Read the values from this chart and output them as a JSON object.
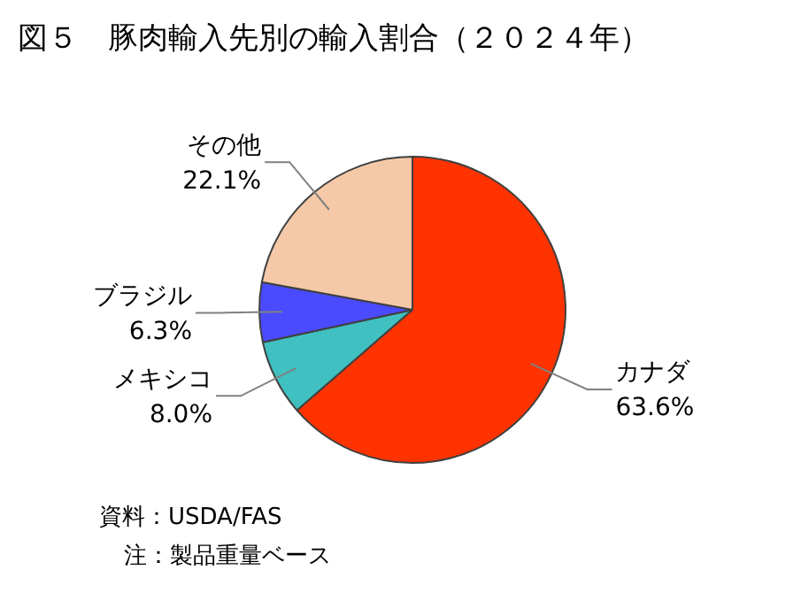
{
  "chart_data": {
    "type": "pie",
    "title": "図５　豚肉輸入先別の輸入割合（２０２４年）",
    "categories": [
      "カナダ",
      "メキシコ",
      "ブラジル",
      "その他"
    ],
    "values": [
      63.6,
      8.0,
      6.3,
      22.1
    ],
    "value_labels": [
      "63.6%",
      "8.0%",
      "6.3%",
      "22.1%"
    ],
    "colors": [
      "#ff3300",
      "#40c0c0",
      "#4a4aff",
      "#f5c9a8"
    ],
    "annotations": [
      "資料：USDA/FAS",
      "注：製品重量ベース"
    ]
  }
}
